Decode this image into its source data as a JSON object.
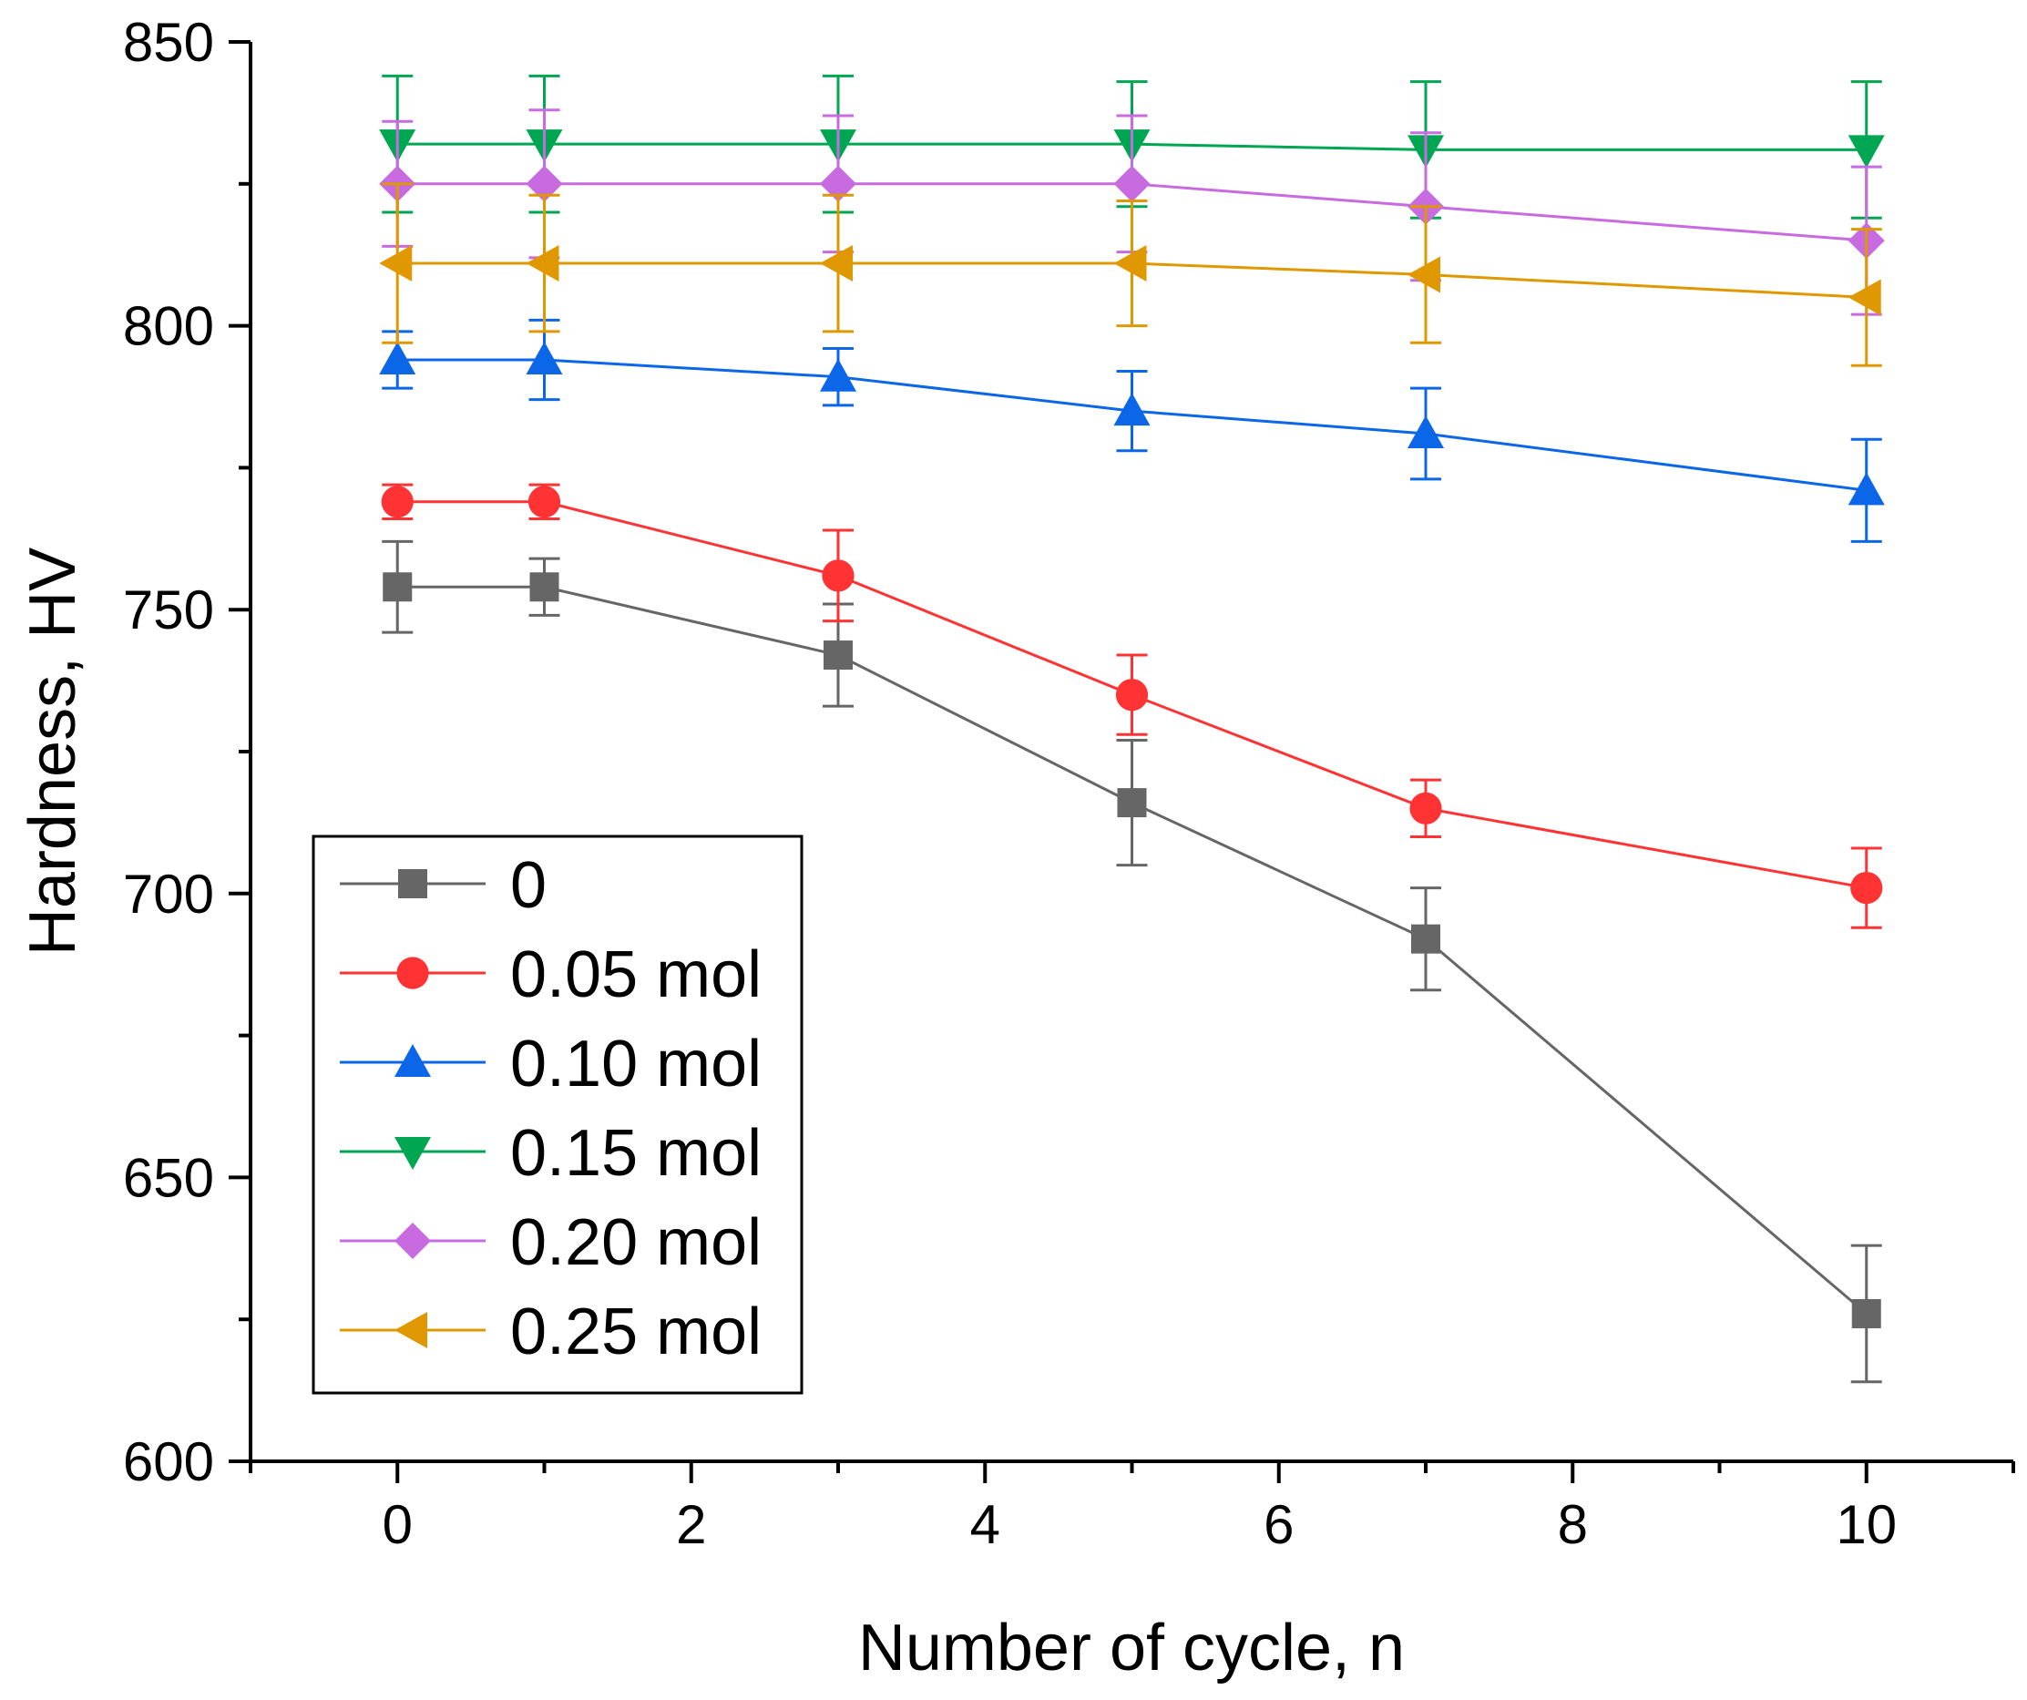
{
  "chart_data": {
    "type": "line",
    "title": "",
    "xlabel": "Number of cycle, n",
    "ylabel": "Hardness, HV",
    "xlim": [
      -1,
      11
    ],
    "ylim": [
      600,
      850
    ],
    "xticks": [
      0,
      2,
      4,
      6,
      8,
      10
    ],
    "xtick_labels": [
      "0",
      "2",
      "4",
      "6",
      "8",
      "10"
    ],
    "yticks": [
      600,
      650,
      700,
      750,
      800,
      850
    ],
    "ytick_labels": [
      "600",
      "650",
      "700",
      "750",
      "800",
      "850"
    ],
    "x": [
      0,
      1,
      3,
      5,
      7,
      10
    ],
    "legend_position": "bottom-left",
    "series": [
      {
        "name": "0",
        "color": "#666666",
        "marker": "square",
        "values": [
          754,
          754,
          742,
          716,
          692,
          626
        ],
        "errors": [
          8,
          5,
          9,
          11,
          9,
          12
        ]
      },
      {
        "name": "0.05 mol",
        "color": "#ff3333",
        "marker": "circle",
        "values": [
          769,
          769,
          756,
          735,
          715,
          701
        ],
        "errors": [
          3,
          3,
          8,
          7,
          5,
          7
        ]
      },
      {
        "name": "0.10 mol",
        "color": "#0b66e8",
        "marker": "triangle-up",
        "values": [
          794,
          794,
          791,
          785,
          781,
          771
        ],
        "errors": [
          5,
          7,
          5,
          7,
          8,
          9
        ]
      },
      {
        "name": "0.15 mol",
        "color": "#00a651",
        "marker": "triangle-down",
        "values": [
          832,
          832,
          832,
          832,
          831,
          831
        ],
        "errors": [
          12,
          12,
          12,
          11,
          12,
          12
        ]
      },
      {
        "name": "0.20 mol",
        "color": "#c86be0",
        "marker": "diamond",
        "values": [
          825,
          825,
          825,
          825,
          821,
          815
        ],
        "errors": [
          11,
          13,
          12,
          12,
          13,
          13
        ]
      },
      {
        "name": "0.25 mol",
        "color": "#e09800",
        "marker": "triangle-left",
        "values": [
          811,
          811,
          811,
          811,
          809,
          805
        ],
        "errors": [
          14,
          12,
          12,
          11,
          12,
          12
        ]
      }
    ]
  }
}
